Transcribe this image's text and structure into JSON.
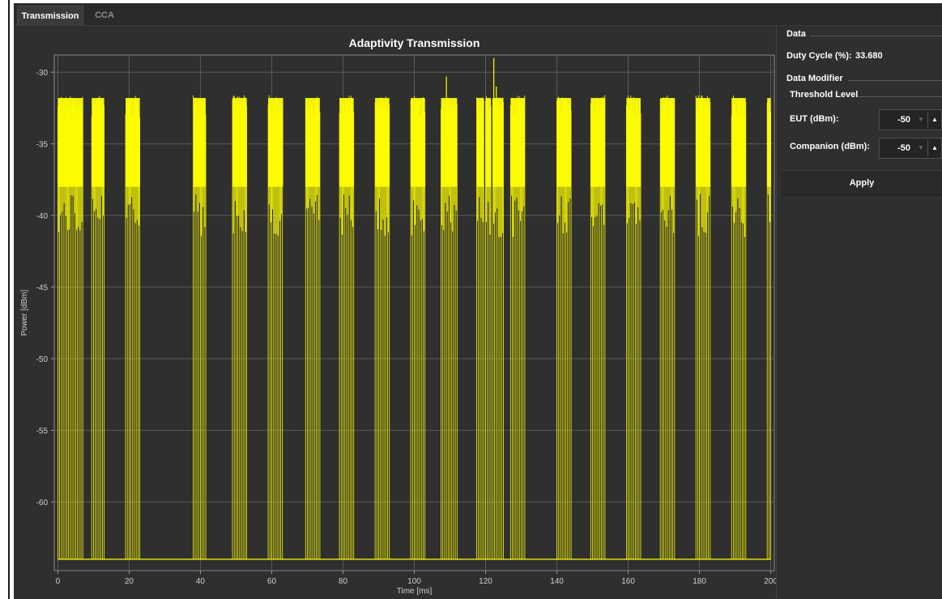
{
  "tabs": [
    {
      "label": "Transmission",
      "active": true
    },
    {
      "label": "CCA",
      "active": false
    }
  ],
  "chart_data": {
    "type": "line",
    "title": "Adaptivity Transmission",
    "xlabel": "Time [ms]",
    "ylabel": "Power [dBm]",
    "xlim": [
      -1,
      201
    ],
    "ylim": [
      -64.8,
      -28.8
    ],
    "x_ticks": [
      0,
      20,
      40,
      60,
      80,
      100,
      120,
      140,
      160,
      180,
      200
    ],
    "y_ticks": [
      -30,
      -35,
      -40,
      -45,
      -50,
      -55,
      -60
    ],
    "grid": true,
    "series": [
      {
        "color": "#ffff00",
        "noise_floor_dbm": -64,
        "burst_peak_dbm": -32,
        "burst_low_dbm": -40,
        "bursts_ms": [
          [
            0,
            7
          ],
          [
            9.5,
            13
          ],
          [
            19,
            23
          ],
          [
            38,
            41.5
          ],
          [
            49,
            53
          ],
          [
            59,
            63.2
          ],
          [
            69.5,
            73.5
          ],
          [
            79,
            83
          ],
          [
            89,
            93
          ],
          [
            99,
            103
          ],
          [
            107.5,
            112
          ],
          [
            117.5,
            119.5
          ],
          [
            120,
            121.5
          ],
          [
            122,
            125
          ],
          [
            127,
            131
          ],
          [
            140,
            144
          ],
          [
            149.5,
            153.5
          ],
          [
            159.5,
            163.5
          ],
          [
            169,
            173
          ],
          [
            179,
            183
          ],
          [
            189,
            193
          ],
          [
            199,
            200
          ]
        ],
        "spikes": [
          {
            "x": 109,
            "y": -30.3
          },
          {
            "x": 122.3,
            "y": -29.0
          },
          {
            "x": 123.0,
            "y": -31.0
          }
        ]
      }
    ]
  },
  "side_panel": {
    "data_title": "Data",
    "duty_cycle_label": "Duty Cycle (%):",
    "duty_cycle_value": "33.680",
    "modifier_title": "Data Modifier",
    "threshold_title": "Threshold Level",
    "eut_label": "EUT (dBm):",
    "eut_value": "-50",
    "companion_label": "Companion (dBm):",
    "companion_value": "-50",
    "apply_label": "Apply"
  },
  "colors": {
    "background": "#2f2f2f",
    "signal": "#ffff00",
    "grid": "#5a5a5a"
  },
  "icons": [
    "arrow-down-icon",
    "arrow-up-icon"
  ]
}
